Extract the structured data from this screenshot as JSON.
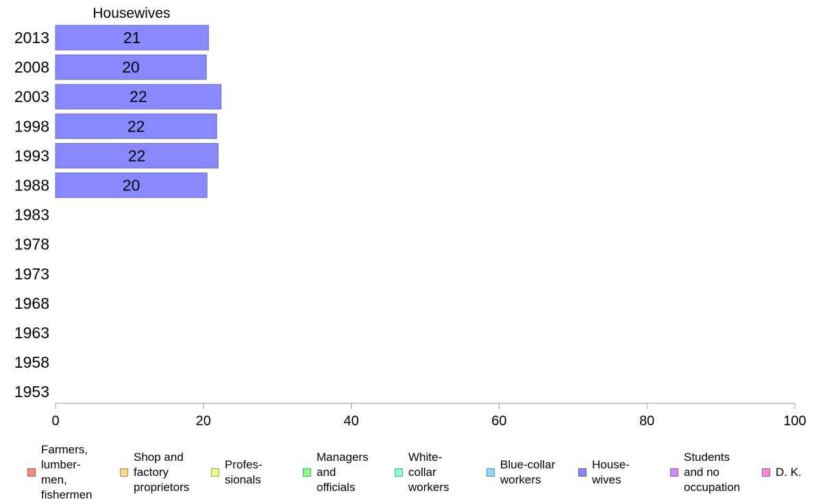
{
  "chart_data": {
    "type": "bar",
    "orientation": "horizontal",
    "panel_title": "Housewives",
    "categories": [
      "2013",
      "2008",
      "2003",
      "1998",
      "1993",
      "1988",
      "1983",
      "1978",
      "1973",
      "1968",
      "1963",
      "1958",
      "1953"
    ],
    "series": [
      {
        "name": "House-\nwives",
        "color": "#8888ff",
        "values": [
          20.7,
          20.4,
          22.4,
          21.8,
          22.0,
          20.5,
          null,
          null,
          null,
          null,
          null,
          null,
          null
        ]
      }
    ],
    "data_labels": [
      "21",
      "20",
      "22",
      "22",
      "22",
      "20",
      "",
      "",
      "",
      "",
      "",
      "",
      ""
    ],
    "xlim": [
      0,
      100
    ],
    "xticks": [
      "0",
      "20",
      "40",
      "60",
      "80",
      "100"
    ],
    "xlabel": "",
    "ylabel": "",
    "grid": false,
    "legend": {
      "position": "bottom",
      "items": [
        {
          "label": "Farmers,\nlumber-\nmen,\nfishermen",
          "color": "#ff8888"
        },
        {
          "label": "Shop and\nfactory\nproprietors",
          "color": "#ffd888"
        },
        {
          "label": "Profes-\nsionals",
          "color": "#e8ff88"
        },
        {
          "label": "Managers\nand\nofficials",
          "color": "#88ff88"
        },
        {
          "label": "White-\ncollar\nworkers",
          "color": "#88ffd8"
        },
        {
          "label": "Blue-collar\nworkers",
          "color": "#88d8ff"
        },
        {
          "label": "House-\nwives",
          "color": "#8888ff"
        },
        {
          "label": "Students\nand no\noccupation",
          "color": "#d888ff"
        },
        {
          "label": "D. K.",
          "color": "#ff88d8"
        }
      ]
    }
  }
}
